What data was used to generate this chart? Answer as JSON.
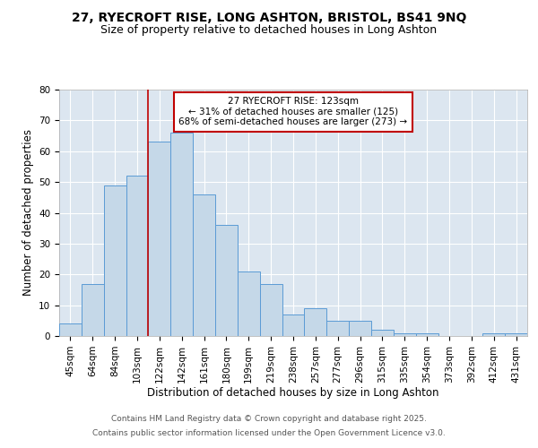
{
  "title_line1": "27, RYECROFT RISE, LONG ASHTON, BRISTOL, BS41 9NQ",
  "title_line2": "Size of property relative to detached houses in Long Ashton",
  "xlabel": "Distribution of detached houses by size in Long Ashton",
  "ylabel": "Number of detached properties",
  "categories": [
    "45sqm",
    "64sqm",
    "84sqm",
    "103sqm",
    "122sqm",
    "142sqm",
    "161sqm",
    "180sqm",
    "199sqm",
    "219sqm",
    "238sqm",
    "257sqm",
    "277sqm",
    "296sqm",
    "315sqm",
    "335sqm",
    "354sqm",
    "373sqm",
    "392sqm",
    "412sqm",
    "431sqm"
  ],
  "values": [
    4,
    17,
    49,
    52,
    63,
    66,
    46,
    36,
    21,
    17,
    7,
    9,
    5,
    5,
    2,
    1,
    1,
    0,
    0,
    1,
    1
  ],
  "bar_color": "#c5d8e8",
  "bar_edge_color": "#5b9bd5",
  "vline_x": 3.5,
  "vline_color": "#c00000",
  "annotation_text": "27 RYECROFT RISE: 123sqm\n← 31% of detached houses are smaller (125)\n68% of semi-detached houses are larger (273) →",
  "annotation_box_color": "#ffffff",
  "annotation_border_color": "#c00000",
  "ylim": [
    0,
    80
  ],
  "yticks": [
    0,
    10,
    20,
    30,
    40,
    50,
    60,
    70,
    80
  ],
  "plot_bg_color": "#dce6f0",
  "fig_bg_color": "#ffffff",
  "footer_line1": "Contains HM Land Registry data © Crown copyright and database right 2025.",
  "footer_line2": "Contains public sector information licensed under the Open Government Licence v3.0.",
  "title_fontsize": 10,
  "subtitle_fontsize": 9,
  "axis_label_fontsize": 8.5,
  "tick_fontsize": 7.5,
  "annotation_fontsize": 7.5,
  "footer_fontsize": 6.5
}
